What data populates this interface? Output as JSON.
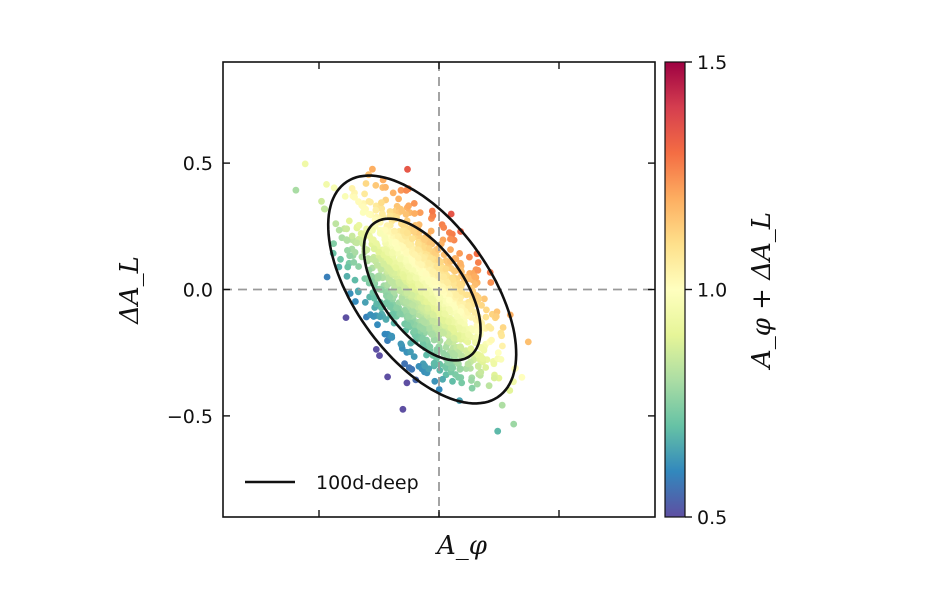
{
  "chart_data": {
    "type": "scatter",
    "xlabel": "A_φ",
    "ylabel": "ΔA_L",
    "colorbar": {
      "label": "A_φ + ΔA_L",
      "range": [
        0.5,
        1.5
      ],
      "ticks": [
        "0.5",
        "1.0",
        "1.5"
      ],
      "colormap": "Spectral_r",
      "stops": [
        "#5e4fa2",
        "#3288bd",
        "#66c2a5",
        "#abdda4",
        "#e6f598",
        "#ffffbf",
        "#fee08b",
        "#fdae61",
        "#f46d43",
        "#d53e4f",
        "#9e0142"
      ]
    },
    "xlim": [
      0.1,
      1.9
    ],
    "ylim": [
      -0.9,
      0.9
    ],
    "x_ticks": [
      0.5,
      1.0,
      1.5
    ],
    "y_ticks": [
      -0.5,
      0.0,
      0.5
    ],
    "y_tick_labels": [
      "−0.5",
      "0.0",
      "0.5"
    ],
    "reference_lines": {
      "x": 1.0,
      "y": 0.0,
      "style": "dashed",
      "color": "#9a9a9a"
    },
    "scatter": {
      "n_points": 1400,
      "center": [
        0.93,
        0.0
      ],
      "sigma_x": 0.14,
      "sigma_y": 0.165,
      "correlation": -0.6,
      "marker_color_by": "A_φ + ΔA_L"
    },
    "contours": [
      {
        "level": "68%",
        "center": [
          0.93,
          0.0
        ],
        "semi_major": 0.33,
        "semi_minor": 0.17,
        "angle_deg": -52
      },
      {
        "level": "95%",
        "center": [
          0.93,
          0.0
        ],
        "semi_major": 0.53,
        "semi_minor": 0.275,
        "angle_deg": -52
      }
    ],
    "legend": {
      "entries": [
        {
          "label": "100d-deep",
          "style": "solid-black-line"
        }
      ],
      "placement": "lower-left"
    }
  }
}
